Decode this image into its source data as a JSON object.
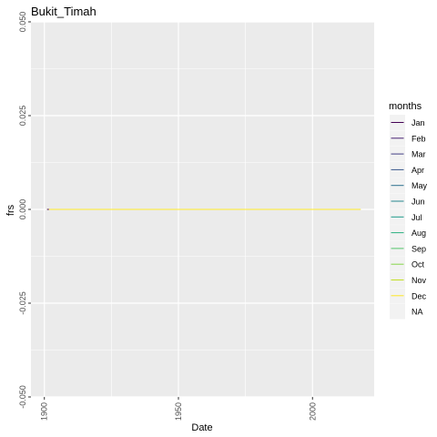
{
  "chart_data": {
    "type": "line",
    "title": "Bukit_Timah",
    "xlabel": "Date",
    "ylabel": "frs",
    "x_ticks": [
      "1900",
      "1950",
      "2000"
    ],
    "y_ticks": [
      "0.050",
      "0.025",
      "0.000",
      "-0.025",
      "-0.050"
    ],
    "xlim": [
      1895,
      2023
    ],
    "ylim": [
      -0.05,
      0.05
    ],
    "grid": true,
    "panel_background": "#ebebeb",
    "legend": {
      "title": "months",
      "position": "right",
      "entries": [
        {
          "label": "Jan",
          "color": "#440154"
        },
        {
          "label": "Feb",
          "color": "#482173"
        },
        {
          "label": "Mar",
          "color": "#433e85"
        },
        {
          "label": "Apr",
          "color": "#38598c"
        },
        {
          "label": "May",
          "color": "#2d708e"
        },
        {
          "label": "Jun",
          "color": "#25858e"
        },
        {
          "label": "Jul",
          "color": "#1e9b8a"
        },
        {
          "label": "Aug",
          "color": "#2ab07f"
        },
        {
          "label": "Sep",
          "color": "#52c569"
        },
        {
          "label": "Oct",
          "color": "#86d549"
        },
        {
          "label": "Nov",
          "color": "#c2df23"
        },
        {
          "label": "Dec",
          "color": "#fde725"
        },
        {
          "label": "NA",
          "color": "#7f7f7f"
        }
      ]
    },
    "series": [
      {
        "name": "Dec",
        "color": "#fde725",
        "x": [
          1901,
          2018
        ],
        "y": [
          0,
          0
        ]
      }
    ]
  }
}
